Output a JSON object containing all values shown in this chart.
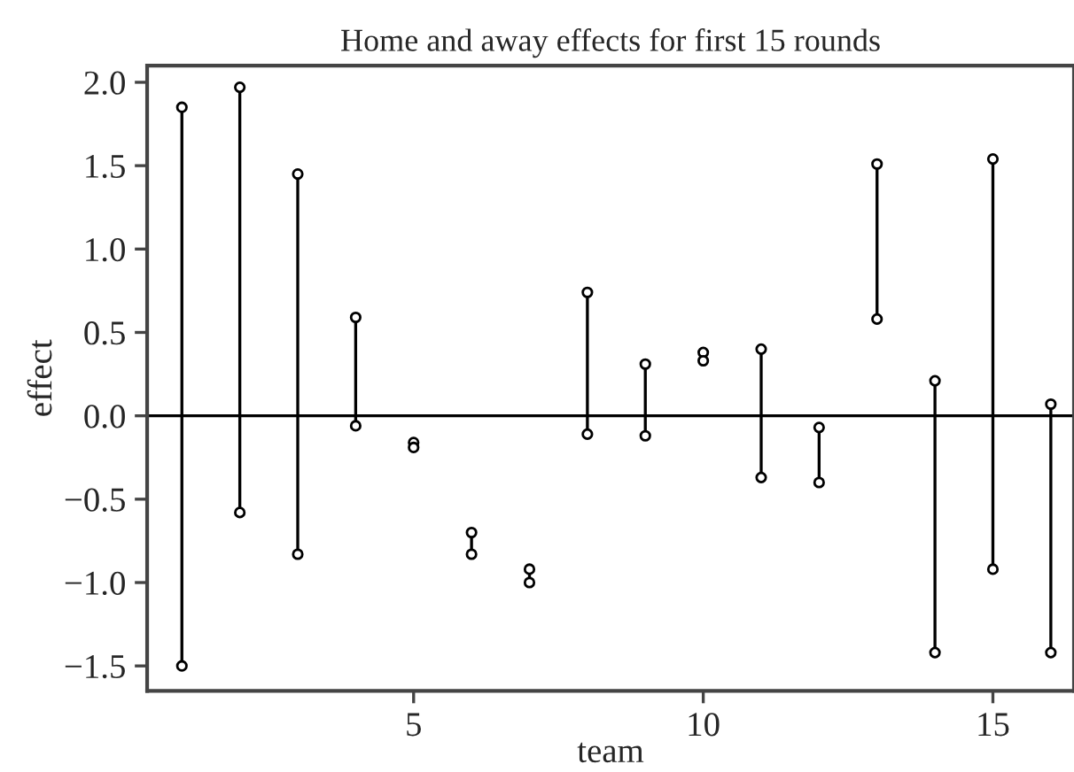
{
  "chart_data": {
    "type": "scatter",
    "title": "Home and away effects for first 15 rounds",
    "xlabel": "team",
    "ylabel": "effect",
    "x": [
      1,
      2,
      3,
      4,
      5,
      6,
      7,
      8,
      9,
      10,
      11,
      12,
      13,
      14,
      15,
      16
    ],
    "series": [
      {
        "color": "#000000",
        "values": [
          1.85,
          1.97,
          1.45,
          0.59,
          -0.16,
          -0.7,
          -0.92,
          0.74,
          0.31,
          0.38,
          0.4,
          -0.07,
          1.51,
          0.21,
          1.54,
          0.07
        ],
        "errors": [
          [
            -1.5,
            1.85
          ],
          [
            -0.58,
            1.97
          ],
          [
            -0.83,
            1.45
          ],
          [
            -0.06,
            0.59
          ],
          [
            -0.19,
            -0.16
          ],
          [
            -0.83,
            -0.7
          ],
          [
            -1.0,
            -0.92
          ],
          [
            -0.11,
            0.74
          ],
          [
            -0.12,
            0.31
          ],
          [
            0.33,
            0.38
          ],
          [
            -0.37,
            0.4
          ],
          [
            -0.4,
            -0.07
          ],
          [
            0.58,
            1.51
          ],
          [
            -1.42,
            0.21
          ],
          [
            -0.92,
            1.54
          ],
          [
            -1.42,
            0.07
          ]
        ]
      },
      {
        "color": "#000000",
        "values": [
          -1.5,
          -0.58,
          -0.83,
          -0.06,
          -0.19,
          -0.83,
          -1.0,
          -0.11,
          -0.12,
          0.33,
          -0.37,
          -0.4,
          0.58,
          -1.42,
          -0.92,
          -1.42
        ]
      }
    ],
    "marker": "circle",
    "xlim": [
      0.4,
      16.4
    ],
    "ylim": [
      -1.65,
      2.1
    ],
    "xticks": [
      5,
      10,
      15
    ],
    "yticks": [
      {
        "value": -1.5,
        "label": "−1.5"
      },
      {
        "value": -1.0,
        "label": "−1.0"
      },
      {
        "value": -0.5,
        "label": "−0.5"
      },
      {
        "value": 0,
        "label": "0.0"
      },
      0.5,
      {
        "value": 1,
        "label": "1.0"
      },
      1.5,
      {
        "value": 2,
        "label": "2.0"
      }
    ],
    "ref_lines": [
      {
        "axis": "y",
        "value": 0,
        "color": "#000000"
      }
    ],
    "grid": false,
    "legend": false
  }
}
